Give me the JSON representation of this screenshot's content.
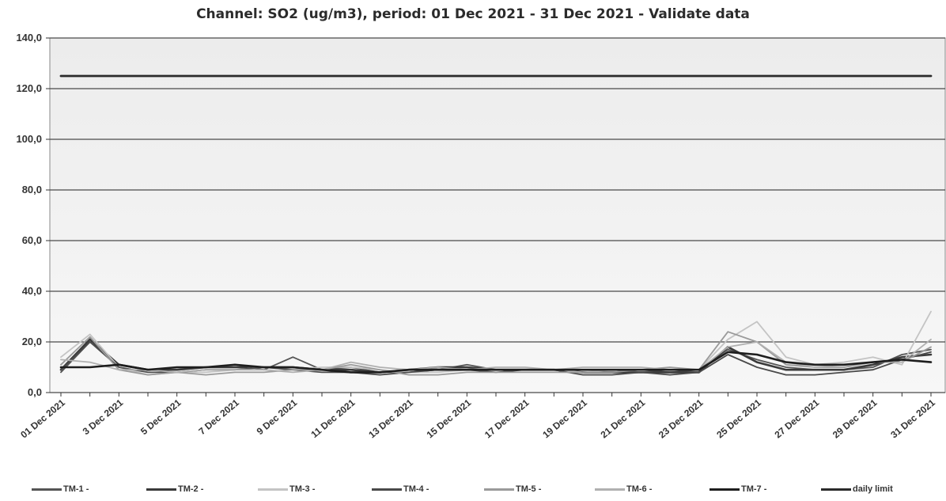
{
  "chart_data": {
    "type": "line",
    "title": "Channel: SO2 (ug/m3), period: 01 Dec 2021 - 31 Dec 2021 - Validate data",
    "xlabel": "",
    "ylabel": "",
    "ylim": [
      0,
      140
    ],
    "yticks": [
      "0,0",
      "20,0",
      "40,0",
      "60,0",
      "80,0",
      "100,0",
      "120,0",
      "140,0"
    ],
    "grid": true,
    "legend_position": "bottom",
    "x": [
      "01 Dec 2021",
      "02 Dec 2021",
      "03 Dec 2021",
      "04 Dec 2021",
      "05 Dec 2021",
      "06 Dec 2021",
      "07 Dec 2021",
      "08 Dec 2021",
      "09 Dec 2021",
      "10 Dec 2021",
      "11 Dec 2021",
      "12 Dec 2021",
      "13 Dec 2021",
      "14 Dec 2021",
      "15 Dec 2021",
      "16 Dec 2021",
      "17 Dec 2021",
      "18 Dec 2021",
      "19 Dec 2021",
      "20 Dec 2021",
      "21 Dec 2021",
      "22 Dec 2021",
      "23 Dec 2021",
      "24 Dec 2021",
      "25 Dec 2021",
      "26 Dec 2021",
      "27 Dec 2021",
      "28 Dec 2021",
      "29 Dec 2021",
      "30 Dec 2021",
      "31 Dec 2021"
    ],
    "xtick_labels": [
      "01 Dec 2021",
      "3 Dec 2021",
      "5 Dec 2021",
      "7 Dec 2021",
      "9 Dec 2021",
      "11 Dec 2021",
      "13 Dec 2021",
      "15 Dec 2021",
      "17 Dec 2021",
      "19 Dec 2021",
      "21 Dec 2021",
      "23 Dec 2021",
      "25 Dec 2021",
      "27 Dec 2021",
      "29 Dec 2021",
      "31 Dec 2021"
    ],
    "series": [
      {
        "name": "TM-1 -",
        "color": "#555555",
        "values": [
          8,
          20,
          11,
          9,
          9,
          10,
          11,
          9,
          14,
          9,
          10,
          8,
          8,
          9,
          11,
          9,
          9,
          9,
          8,
          8,
          9,
          8,
          9,
          17,
          13,
          10,
          9,
          9,
          10,
          15,
          17
        ]
      },
      {
        "name": "TM-2 -",
        "color": "#3a3a3a",
        "values": [
          9,
          21,
          11,
          9,
          9,
          10,
          10,
          10,
          10,
          9,
          9,
          8,
          9,
          10,
          10,
          9,
          9,
          9,
          8,
          8,
          8,
          8,
          8,
          18,
          12,
          9,
          9,
          9,
          11,
          14,
          15
        ]
      },
      {
        "name": "TM-3 -",
        "color": "#c4c4c4",
        "values": [
          14,
          23,
          10,
          7,
          8,
          8,
          9,
          10,
          9,
          10,
          10,
          9,
          8,
          8,
          9,
          9,
          9,
          9,
          8,
          9,
          9,
          9,
          9,
          21,
          28,
          14,
          11,
          12,
          14,
          11,
          32
        ]
      },
      {
        "name": "TM-4 -",
        "color": "#4a4a4a",
        "values": [
          9,
          20,
          10,
          8,
          8,
          9,
          9,
          10,
          9,
          8,
          8,
          7,
          8,
          9,
          9,
          8,
          9,
          9,
          7,
          7,
          8,
          7,
          8,
          15,
          10,
          7,
          7,
          8,
          9,
          13,
          16
        ]
      },
      {
        "name": "TM-5 -",
        "color": "#9a9a9a",
        "values": [
          11,
          22,
          9,
          7,
          8,
          7,
          8,
          8,
          9,
          9,
          11,
          9,
          7,
          7,
          8,
          8,
          8,
          8,
          8,
          8,
          9,
          10,
          9,
          24,
          20,
          11,
          10,
          10,
          12,
          12,
          18
        ]
      },
      {
        "name": "TM-6 -",
        "color": "#b0b0b0",
        "values": [
          13,
          12,
          9,
          9,
          8,
          9,
          9,
          9,
          8,
          9,
          12,
          10,
          9,
          10,
          9,
          10,
          10,
          9,
          10,
          10,
          10,
          9,
          9,
          18,
          20,
          12,
          10,
          11,
          12,
          12,
          21
        ]
      },
      {
        "name": "TM-7 -",
        "color": "#1e1e1e",
        "values": [
          10,
          10,
          11,
          9,
          10,
          10,
          11,
          10,
          10,
          9,
          8,
          8,
          9,
          9,
          9,
          9,
          9,
          9,
          9,
          9,
          9,
          9,
          9,
          16,
          15,
          12,
          11,
          11,
          12,
          13,
          12
        ]
      },
      {
        "name": "daily limit",
        "color": "#2a2a2a",
        "values": [
          125,
          125,
          125,
          125,
          125,
          125,
          125,
          125,
          125,
          125,
          125,
          125,
          125,
          125,
          125,
          125,
          125,
          125,
          125,
          125,
          125,
          125,
          125,
          125,
          125,
          125,
          125,
          125,
          125,
          125,
          125
        ]
      }
    ]
  }
}
